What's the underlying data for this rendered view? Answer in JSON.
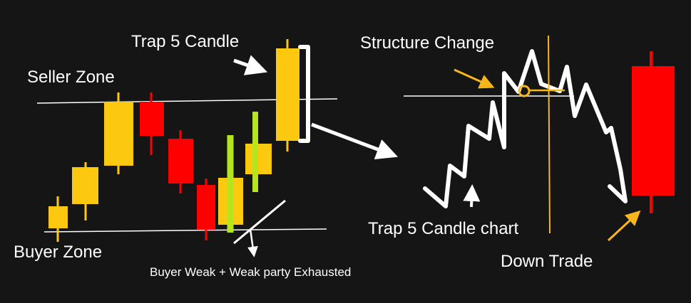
{
  "labels": {
    "trap_candle": "Trap 5 Candle",
    "seller_zone": "Seller Zone",
    "buyer_zone": "Buyer Zone",
    "buyer_weak": "Buyer Weak + Weak party Exhausted",
    "structure_change": "Structure Change",
    "trap_chart": "Trap 5 Candle chart",
    "down_trade": "Down Trade"
  },
  "colors": {
    "background": "#151515",
    "bullish": "#fcc910",
    "bearish": "#ff0000",
    "highlight": "#b5e61d",
    "line": "#ffffff",
    "annotation": "#f7b71b"
  },
  "candles": [
    {
      "id": "candle-1",
      "kind": "bullish"
    },
    {
      "id": "candle-2",
      "kind": "bullish"
    },
    {
      "id": "candle-3",
      "kind": "bullish"
    },
    {
      "id": "candle-4",
      "kind": "bearish"
    },
    {
      "id": "candle-5",
      "kind": "bearish"
    },
    {
      "id": "candle-6",
      "kind": "bearish"
    },
    {
      "id": "candle-7",
      "kind": "bullish-highlight"
    },
    {
      "id": "candle-8",
      "kind": "bullish-highlight"
    },
    {
      "id": "candle-9-trap",
      "kind": "bullish"
    },
    {
      "id": "candle-down-trade",
      "kind": "bearish"
    }
  ]
}
